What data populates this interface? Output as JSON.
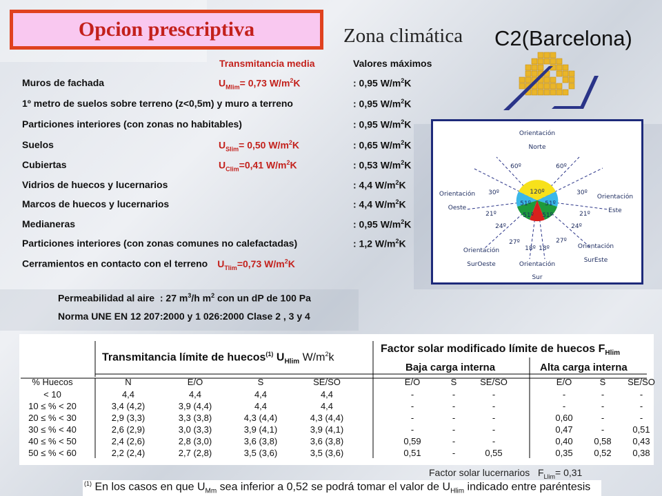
{
  "title": "Opcion prescriptiva",
  "zona_label": "Zona climática",
  "region": "C2(Barcelona)",
  "headers": {
    "transmitancia": "Transmitancia media",
    "valores": "Valores máximos"
  },
  "elements": [
    {
      "label": "Muros de fachada",
      "u_symbol": "U",
      "u_sub": "Mlim",
      "u_value": "= 0,73 W/m",
      "max_value": ": 0,95 W/m"
    },
    {
      "label": "1º metro de suelos sobre terreno (z<0,5m) y muro a terreno",
      "u_symbol": "",
      "u_sub": "",
      "u_value": "",
      "max_value": ": 0,95 W/m"
    },
    {
      "label": "Particiones interiores (con zonas no habitables)",
      "u_symbol": "",
      "u_sub": "",
      "u_value": "",
      "max_value": ": 0,95 W/m"
    },
    {
      "label": "Suelos",
      "u_symbol": "U",
      "u_sub": "Slim",
      "u_value": "= 0,50 W/m",
      "max_value": ": 0,65 W/m"
    },
    {
      "label": "Cubiertas",
      "u_symbol": "U",
      "u_sub": "Clim",
      "u_value": "=0,41 W/m",
      "max_value": ": 0,53 W/m"
    },
    {
      "label": "Vidrios de huecos y lucernarios",
      "u_symbol": "",
      "u_sub": "",
      "u_value": "",
      "max_value": ": 4,4 W/m"
    },
    {
      "label": "Marcos de huecos y lucernarios",
      "u_symbol": "",
      "u_sub": "",
      "u_value": "",
      "max_value": ": 4,4 W/m"
    },
    {
      "label": "Medianeras",
      "u_symbol": "",
      "u_sub": "",
      "u_value": "",
      "max_value": ": 0,95 W/m"
    },
    {
      "label": "Particiones interiores (con zonas comunes no calefactadas)",
      "u_symbol": "",
      "u_sub": "",
      "u_value": "",
      "max_value": ": 1,2 W/m"
    }
  ],
  "cerramientos": {
    "label": "Cerramientos en contacto con el terreno",
    "u_symbol": "U",
    "u_sub": "Tlim",
    "u_value": "=0,73 W/m"
  },
  "unit_sup": "2",
  "unit_k": "K",
  "permeabilidad": {
    "label": "Permeabilidad al aire",
    "value_a": ": 27 m",
    "sup_a": "3",
    "value_b": "/h m",
    "sup_b": "2",
    "value_c": " con un dP de 100 Pa"
  },
  "norma": "Norma UNE EN 12 207:2000 y 1 026:2000 Clase  2 , 3 y 4",
  "compass": {
    "norte": [
      "Orientación",
      "Norte"
    ],
    "este": [
      "Orientación",
      "Este"
    ],
    "oeste": [
      "Orientación",
      "Oeste"
    ],
    "sureste": [
      "Orientación",
      "SurEste"
    ],
    "suroeste": [
      "Orientación",
      "SurOeste"
    ],
    "sur": [
      "Orientación",
      "Sur"
    ],
    "angles": {
      "n60l": "60º",
      "n60r": "60º",
      "w30": "30º",
      "e30": "30º",
      "w21": "21º",
      "e21": "21º",
      "w24": "24º",
      "e24": "24º",
      "w27": "27º",
      "e27": "27º",
      "w18": "18º",
      "e18": "18º",
      "c120": "120º",
      "c51a": "51º",
      "c51b": "51º",
      "c51c": "51º",
      "c51d": "51º"
    },
    "colors": {
      "north": "#f7e11b",
      "east_west": "#3bb7e8",
      "south_side": "#1e9a3c",
      "south": "#d8201c"
    }
  },
  "table": {
    "title_trans": "Transmitancia límite de huecos",
    "title_trans_note": "(1)",
    "title_trans_sym": "U",
    "title_trans_sub": "Hlim",
    "title_trans_unit": "W/m",
    "title_trans_unit_sup": "2",
    "title_trans_unit_k": "k",
    "title_factor": "Factor solar modificado límite de huecos F",
    "title_factor_sub": "Hlim",
    "baja": "Baja carga interna",
    "alta": "Alta carga interna",
    "columns": [
      "% Huecos",
      "N",
      "E/O",
      "S",
      "SE/SO",
      "E/O",
      "S",
      "SE/SO",
      "E/O",
      "S",
      "SE/SO"
    ],
    "rows": [
      [
        "< 10",
        "4,4",
        "4,4",
        "4,4",
        "4,4",
        "-",
        "-",
        "-",
        "-",
        "-",
        "-"
      ],
      [
        "10 ≤ % < 20",
        "3,4 (4,2)",
        "3,9 (4,4)",
        "4,4",
        "4,4",
        "-",
        "-",
        "-",
        "-",
        "-",
        "-"
      ],
      [
        "20 ≤ % < 30",
        "2,9 (3,3)",
        "3,3 (3,8)",
        "4,3 (4,4)",
        "4,3 (4,4)",
        "-",
        "-",
        "-",
        "0,60",
        "-",
        "-"
      ],
      [
        "30 ≤ % < 40",
        "2,6 (2,9)",
        "3,0 (3,3)",
        "3,9 (4,1)",
        "3,9 (4,1)",
        "-",
        "-",
        "-",
        "0,47",
        "-",
        "0,51"
      ],
      [
        "40 ≤ % < 50",
        "2,4 (2,6)",
        "2,8 (3,0)",
        "3,6 (3,8)",
        "3,6 (3,8)",
        "0,59",
        "-",
        "-",
        "0,40",
        "0,58",
        "0,43"
      ],
      [
        "50 ≤ % < 60",
        "2,2 (2,4)",
        "2,7 (2,8)",
        "3,5 (3,6)",
        "3,5 (3,6)",
        "0,51",
        "-",
        "0,55",
        "0,35",
        "0,52",
        "0,38"
      ]
    ]
  },
  "factor_lucernarios": {
    "label": "Factor solar lucernarios",
    "sym": "F",
    "sub": "Llim",
    "value": "=  0,31"
  },
  "note": {
    "mark": "(1)",
    "text_a": " En los casos en que U",
    "sub_a": "Mm",
    "text_b": " sea inferior a 0,52 se podrá tomar el valor de U",
    "sub_b": "Hlim",
    "text_c": " indicado entre paréntesis"
  }
}
